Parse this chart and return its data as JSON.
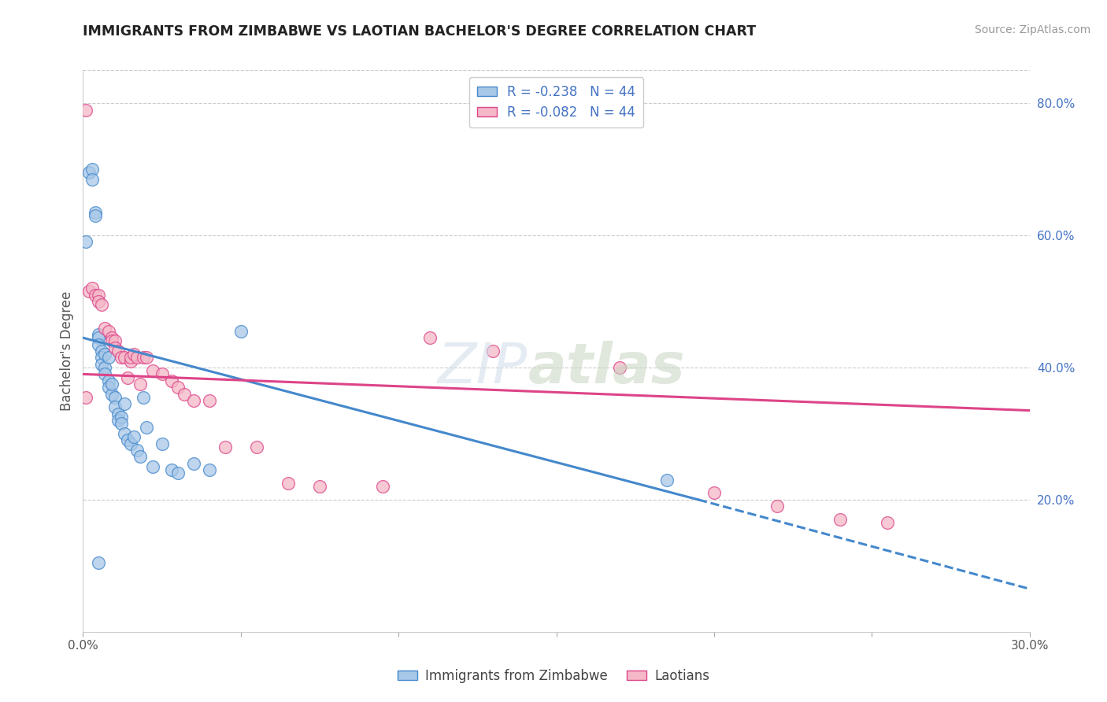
{
  "title": "IMMIGRANTS FROM ZIMBABWE VS LAOTIAN BACHELOR'S DEGREE CORRELATION CHART",
  "source": "Source: ZipAtlas.com",
  "ylabel": "Bachelor's Degree",
  "xlim": [
    0.0,
    0.3
  ],
  "ylim": [
    0.0,
    0.85
  ],
  "x_ticks": [
    0.0,
    0.05,
    0.1,
    0.15,
    0.2,
    0.25,
    0.3
  ],
  "y_ticks_right": [
    0.2,
    0.4,
    0.6,
    0.8
  ],
  "y_tick_labels_right": [
    "20.0%",
    "40.0%",
    "60.0%",
    "80.0%"
  ],
  "color_blue": "#a8c8e8",
  "color_pink": "#f4b8c8",
  "color_blue_line": "#4488cc",
  "color_pink_line": "#dd4488",
  "blue_scatter_x": [
    0.001,
    0.002,
    0.003,
    0.003,
    0.004,
    0.004,
    0.005,
    0.005,
    0.005,
    0.006,
    0.006,
    0.006,
    0.007,
    0.007,
    0.007,
    0.008,
    0.008,
    0.008,
    0.009,
    0.009,
    0.01,
    0.01,
    0.011,
    0.011,
    0.012,
    0.012,
    0.013,
    0.013,
    0.014,
    0.015,
    0.016,
    0.017,
    0.018,
    0.019,
    0.02,
    0.022,
    0.025,
    0.028,
    0.03,
    0.035,
    0.04,
    0.05,
    0.185,
    0.005
  ],
  "blue_scatter_y": [
    0.59,
    0.695,
    0.7,
    0.685,
    0.635,
    0.63,
    0.45,
    0.445,
    0.435,
    0.425,
    0.415,
    0.405,
    0.42,
    0.4,
    0.39,
    0.415,
    0.38,
    0.37,
    0.36,
    0.375,
    0.355,
    0.34,
    0.33,
    0.32,
    0.325,
    0.315,
    0.345,
    0.3,
    0.29,
    0.285,
    0.295,
    0.275,
    0.265,
    0.355,
    0.31,
    0.25,
    0.285,
    0.245,
    0.24,
    0.255,
    0.245,
    0.455,
    0.23,
    0.105
  ],
  "pink_scatter_x": [
    0.001,
    0.002,
    0.003,
    0.004,
    0.005,
    0.005,
    0.006,
    0.007,
    0.008,
    0.009,
    0.009,
    0.01,
    0.01,
    0.011,
    0.012,
    0.013,
    0.014,
    0.015,
    0.015,
    0.016,
    0.017,
    0.018,
    0.019,
    0.02,
    0.022,
    0.025,
    0.028,
    0.03,
    0.032,
    0.035,
    0.04,
    0.045,
    0.055,
    0.065,
    0.075,
    0.095,
    0.11,
    0.13,
    0.17,
    0.2,
    0.22,
    0.24,
    0.255,
    0.001
  ],
  "pink_scatter_y": [
    0.79,
    0.515,
    0.52,
    0.51,
    0.51,
    0.5,
    0.495,
    0.46,
    0.455,
    0.445,
    0.44,
    0.44,
    0.43,
    0.425,
    0.415,
    0.415,
    0.385,
    0.41,
    0.415,
    0.42,
    0.415,
    0.375,
    0.415,
    0.415,
    0.395,
    0.39,
    0.38,
    0.37,
    0.36,
    0.35,
    0.35,
    0.28,
    0.28,
    0.225,
    0.22,
    0.22,
    0.445,
    0.425,
    0.4,
    0.21,
    0.19,
    0.17,
    0.165,
    0.355
  ],
  "blue_line_x0": 0.0,
  "blue_line_x1": 0.195,
  "blue_line_y0": 0.445,
  "blue_line_y1": 0.2,
  "blue_line_ext_x0": 0.195,
  "blue_line_ext_x1": 0.3,
  "blue_line_ext_y0": 0.2,
  "blue_line_ext_y1": 0.065,
  "pink_line_x0": 0.0,
  "pink_line_x1": 0.3,
  "pink_line_y0": 0.39,
  "pink_line_y1": 0.335
}
